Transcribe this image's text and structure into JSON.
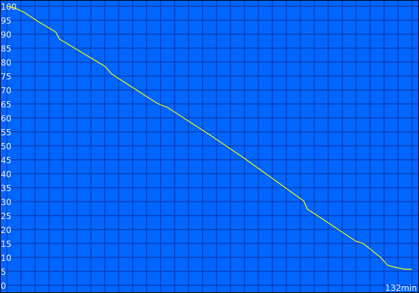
{
  "chart_data": {
    "type": "line",
    "title": "",
    "xlabel": "",
    "ylabel": "",
    "x_end_label": "132min",
    "xlim": [
      0,
      132
    ],
    "ylim": [
      0,
      100
    ],
    "y_ticks": [
      0,
      5,
      10,
      15,
      20,
      25,
      30,
      35,
      40,
      45,
      50,
      55,
      60,
      65,
      70,
      75,
      80,
      85,
      90,
      95,
      100
    ],
    "grid": true,
    "colors": {
      "background": "#0066ff",
      "grid": "#0a3fb8",
      "line": "#ffff00",
      "border": "#000000"
    },
    "series": [
      {
        "x": [
          0,
          2.3,
          5.7,
          10.2,
          13.7,
          15.9,
          17.1,
          20.5,
          31.9,
          34.1,
          48.9,
          52.3,
          66,
          77.4,
          96.7,
          97.9,
          100.1,
          113.8,
          116.1,
          121.8,
          124,
          126.3,
          129.7,
          132
        ],
        "y": [
          100,
          99.5,
          97.75,
          94.5,
          92.25,
          90.75,
          88.25,
          86,
          78.5,
          75.75,
          65.25,
          63.75,
          54,
          45.5,
          30.25,
          27.25,
          25.75,
          15.75,
          15,
          10,
          7.25,
          6.5,
          5.75,
          5.75
        ]
      }
    ]
  }
}
